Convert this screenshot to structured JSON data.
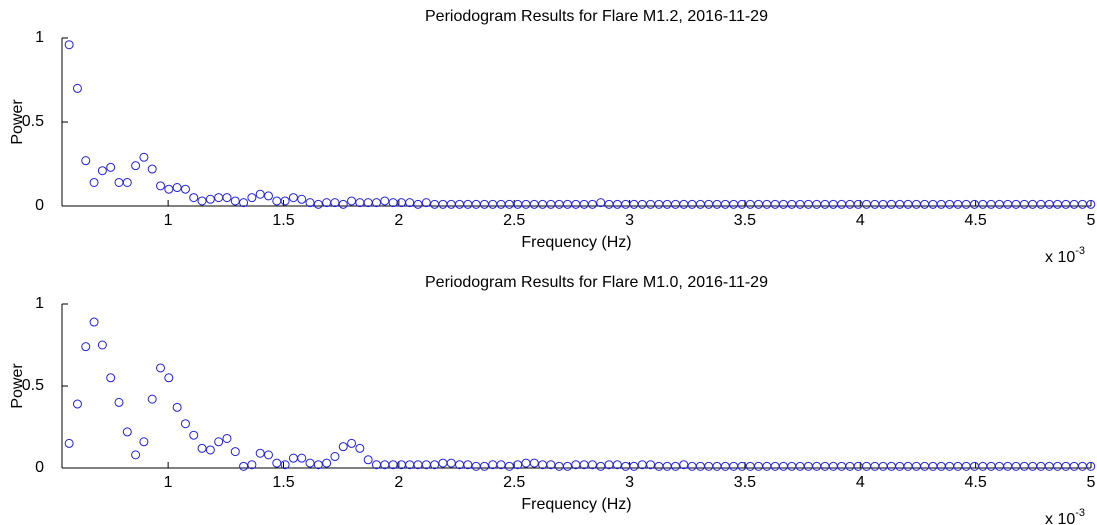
{
  "chart_data": [
    {
      "type": "scatter",
      "title": "Periodogram Results for Flare M1.2, 2016-11-29",
      "x_label": "Frequency (Hz)",
      "y_label": "Power",
      "x_scale_label": "x 10",
      "x_scale_exponent": "-3",
      "color": "#1f1fe0",
      "xlim": [
        0.54,
        5
      ],
      "xticks": [
        1,
        1.5,
        2,
        2.5,
        3,
        3.5,
        4,
        4.5,
        5
      ],
      "ylim": [
        0,
        1
      ],
      "yticks": [
        0,
        0.5,
        1
      ],
      "x": [
        0.571,
        0.607,
        0.643,
        0.679,
        0.715,
        0.751,
        0.787,
        0.823,
        0.859,
        0.895,
        0.931,
        0.967,
        1.003,
        1.039,
        1.075,
        1.111,
        1.147,
        1.183,
        1.219,
        1.255,
        1.291,
        1.327,
        1.363,
        1.399,
        1.435,
        1.471,
        1.507,
        1.543,
        1.579,
        1.615,
        1.651,
        1.687,
        1.723,
        1.759,
        1.795,
        1.831,
        1.867,
        1.903,
        1.939,
        1.975,
        2.011,
        2.047,
        2.083,
        2.119,
        2.155,
        2.191,
        2.227,
        2.263,
        2.299,
        2.335,
        2.371,
        2.407,
        2.443,
        2.479,
        2.515,
        2.551,
        2.587,
        2.623,
        2.659,
        2.695,
        2.731,
        2.767,
        2.803,
        2.839,
        2.875,
        2.911,
        2.947,
        2.983,
        3.019,
        3.055,
        3.091,
        3.127,
        3.163,
        3.199,
        3.235,
        3.271,
        3.307,
        3.343,
        3.379,
        3.415,
        3.451,
        3.487,
        3.523,
        3.559,
        3.595,
        3.631,
        3.667,
        3.703,
        3.739,
        3.775,
        3.811,
        3.847,
        3.883,
        3.919,
        3.955,
        3.991,
        4.027,
        4.063,
        4.099,
        4.135,
        4.171,
        4.207,
        4.243,
        4.279,
        4.315,
        4.351,
        4.387,
        4.423,
        4.459,
        4.495,
        4.531,
        4.567,
        4.603,
        4.639,
        4.675,
        4.711,
        4.747,
        4.783,
        4.819,
        4.855,
        4.891,
        4.927,
        4.963,
        4.999
      ],
      "values": [
        0.96,
        0.7,
        0.27,
        0.14,
        0.21,
        0.23,
        0.14,
        0.14,
        0.24,
        0.29,
        0.22,
        0.12,
        0.1,
        0.11,
        0.1,
        0.05,
        0.03,
        0.04,
        0.05,
        0.05,
        0.03,
        0.02,
        0.05,
        0.07,
        0.06,
        0.03,
        0.03,
        0.05,
        0.04,
        0.02,
        0.01,
        0.02,
        0.02,
        0.01,
        0.03,
        0.02,
        0.02,
        0.02,
        0.03,
        0.02,
        0.02,
        0.02,
        0.01,
        0.02,
        0.01,
        0.01,
        0.01,
        0.01,
        0.01,
        0.01,
        0.01,
        0.01,
        0.01,
        0.01,
        0.01,
        0.01,
        0.01,
        0.01,
        0.01,
        0.01,
        0.01,
        0.01,
        0.01,
        0.01,
        0.02,
        0.01,
        0.01,
        0.01,
        0.01,
        0.01,
        0.01,
        0.01,
        0.01,
        0.01,
        0.01,
        0.01,
        0.01,
        0.01,
        0.01,
        0.01,
        0.01,
        0.01,
        0.01,
        0.01,
        0.01,
        0.01,
        0.01,
        0.01,
        0.01,
        0.01,
        0.01,
        0.01,
        0.01,
        0.01,
        0.01,
        0.01,
        0.01,
        0.01,
        0.01,
        0.01,
        0.01,
        0.01,
        0.01,
        0.01,
        0.01,
        0.01,
        0.01,
        0.01,
        0.01,
        0.01,
        0.01,
        0.01,
        0.01,
        0.01,
        0.01,
        0.01,
        0.01,
        0.01,
        0.01,
        0.01,
        0.01,
        0.01,
        0.01,
        0.01
      ]
    },
    {
      "type": "scatter",
      "title": "Periodogram Results for Flare M1.0, 2016-11-29",
      "x_label": "Frequency (Hz)",
      "y_label": "Power",
      "x_scale_label": "x 10",
      "x_scale_exponent": "-3",
      "color": "#1f1fe0",
      "xlim": [
        0.54,
        5
      ],
      "xticks": [
        1,
        1.5,
        2,
        2.5,
        3,
        3.5,
        4,
        4.5,
        5
      ],
      "ylim": [
        0,
        1
      ],
      "yticks": [
        0,
        0.5,
        1
      ],
      "x": [
        0.571,
        0.607,
        0.643,
        0.679,
        0.715,
        0.751,
        0.787,
        0.823,
        0.859,
        0.895,
        0.931,
        0.967,
        1.003,
        1.039,
        1.075,
        1.111,
        1.147,
        1.183,
        1.219,
        1.255,
        1.291,
        1.327,
        1.363,
        1.399,
        1.435,
        1.471,
        1.507,
        1.543,
        1.579,
        1.615,
        1.651,
        1.687,
        1.723,
        1.759,
        1.795,
        1.831,
        1.867,
        1.903,
        1.939,
        1.975,
        2.011,
        2.047,
        2.083,
        2.119,
        2.155,
        2.191,
        2.227,
        2.263,
        2.299,
        2.335,
        2.371,
        2.407,
        2.443,
        2.479,
        2.515,
        2.551,
        2.587,
        2.623,
        2.659,
        2.695,
        2.731,
        2.767,
        2.803,
        2.839,
        2.875,
        2.911,
        2.947,
        2.983,
        3.019,
        3.055,
        3.091,
        3.127,
        3.163,
        3.199,
        3.235,
        3.271,
        3.307,
        3.343,
        3.379,
        3.415,
        3.451,
        3.487,
        3.523,
        3.559,
        3.595,
        3.631,
        3.667,
        3.703,
        3.739,
        3.775,
        3.811,
        3.847,
        3.883,
        3.919,
        3.955,
        3.991,
        4.027,
        4.063,
        4.099,
        4.135,
        4.171,
        4.207,
        4.243,
        4.279,
        4.315,
        4.351,
        4.387,
        4.423,
        4.459,
        4.495,
        4.531,
        4.567,
        4.603,
        4.639,
        4.675,
        4.711,
        4.747,
        4.783,
        4.819,
        4.855,
        4.891,
        4.927,
        4.963,
        4.999
      ],
      "values": [
        0.15,
        0.39,
        0.74,
        0.89,
        0.75,
        0.55,
        0.4,
        0.22,
        0.08,
        0.16,
        0.42,
        0.61,
        0.55,
        0.37,
        0.27,
        0.2,
        0.12,
        0.11,
        0.16,
        0.18,
        0.1,
        0.01,
        0.02,
        0.09,
        0.08,
        0.03,
        0.02,
        0.06,
        0.06,
        0.03,
        0.02,
        0.03,
        0.07,
        0.13,
        0.15,
        0.12,
        0.05,
        0.02,
        0.02,
        0.02,
        0.02,
        0.02,
        0.02,
        0.02,
        0.02,
        0.03,
        0.03,
        0.02,
        0.02,
        0.01,
        0.01,
        0.02,
        0.02,
        0.01,
        0.02,
        0.03,
        0.03,
        0.02,
        0.02,
        0.01,
        0.01,
        0.02,
        0.02,
        0.02,
        0.01,
        0.02,
        0.02,
        0.01,
        0.01,
        0.02,
        0.02,
        0.01,
        0.01,
        0.01,
        0.02,
        0.01,
        0.01,
        0.01,
        0.01,
        0.01,
        0.01,
        0.01,
        0.01,
        0.01,
        0.01,
        0.01,
        0.01,
        0.01,
        0.01,
        0.01,
        0.01,
        0.01,
        0.01,
        0.01,
        0.01,
        0.01,
        0.01,
        0.01,
        0.01,
        0.01,
        0.01,
        0.01,
        0.01,
        0.01,
        0.01,
        0.01,
        0.01,
        0.01,
        0.01,
        0.01,
        0.01,
        0.01,
        0.01,
        0.01,
        0.01,
        0.01,
        0.01,
        0.01,
        0.01,
        0.01,
        0.01,
        0.01,
        0.01,
        0.01
      ]
    }
  ]
}
